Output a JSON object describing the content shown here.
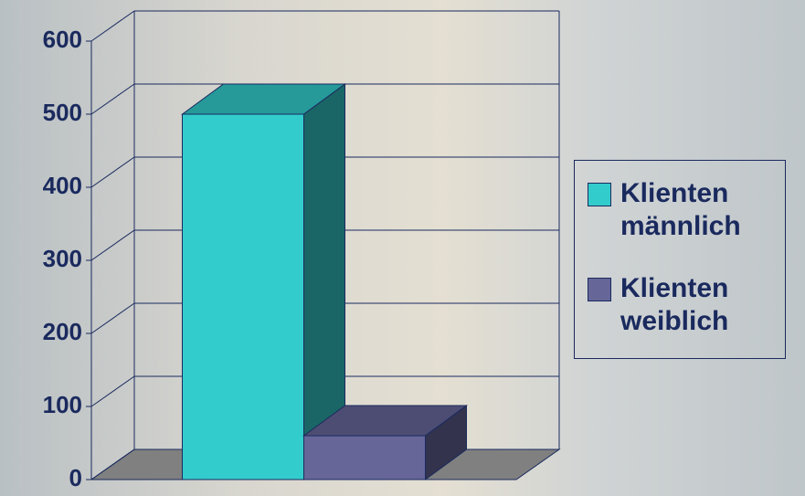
{
  "chart_data": {
    "type": "bar3d",
    "categories": [
      null
    ],
    "series": [
      {
        "name": "Klienten männlich",
        "color": "#33cccc",
        "values": [
          500
        ]
      },
      {
        "name": "Klienten weiblich",
        "color": "#666699",
        "values": [
          60
        ]
      }
    ],
    "ylim": [
      0,
      600
    ],
    "yticks": [
      0,
      100,
      200,
      300,
      400,
      500,
      600
    ],
    "grid": true,
    "legend": "right"
  }
}
